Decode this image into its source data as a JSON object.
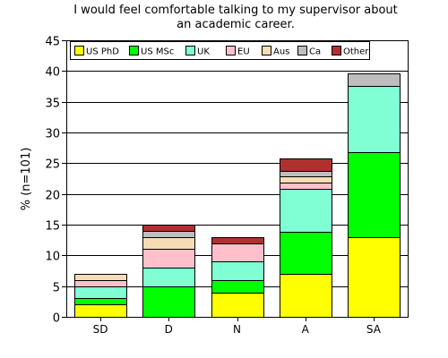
{
  "chart_data": {
    "type": "bar",
    "stacked": true,
    "title_lines": [
      "I would feel comfortable talking to my supervisor about",
      "an academic career."
    ],
    "xlabel": "",
    "ylabel": "% (n=101)",
    "ylim": [
      0,
      45
    ],
    "yticks": [
      0,
      5,
      10,
      15,
      20,
      25,
      30,
      35,
      40,
      45
    ],
    "grid": true,
    "legend_position": "top-left",
    "categories": [
      "SD",
      "D",
      "N",
      "A",
      "SA"
    ],
    "series": [
      {
        "name": "US PhD",
        "color": "#ffff00",
        "values": [
          2,
          0,
          4,
          7,
          12.9
        ]
      },
      {
        "name": "US MSc",
        "color": "#00ff00",
        "values": [
          1,
          5,
          2,
          6.9,
          13.9
        ]
      },
      {
        "name": "UK",
        "color": "#80ffd4",
        "values": [
          2,
          3,
          3,
          6.9,
          10.8
        ]
      },
      {
        "name": "EU",
        "color": "#ffc0cb",
        "values": [
          1,
          3,
          3,
          1,
          0
        ]
      },
      {
        "name": "Aus",
        "color": "#f5dcb4",
        "values": [
          1,
          2,
          0,
          1,
          0
        ]
      },
      {
        "name": "Ca",
        "color": "#bebebe",
        "values": [
          0,
          1,
          0,
          1,
          2
        ]
      },
      {
        "name": "Other",
        "color": "#b03030",
        "values": [
          0,
          1,
          1,
          2,
          0
        ]
      }
    ]
  }
}
